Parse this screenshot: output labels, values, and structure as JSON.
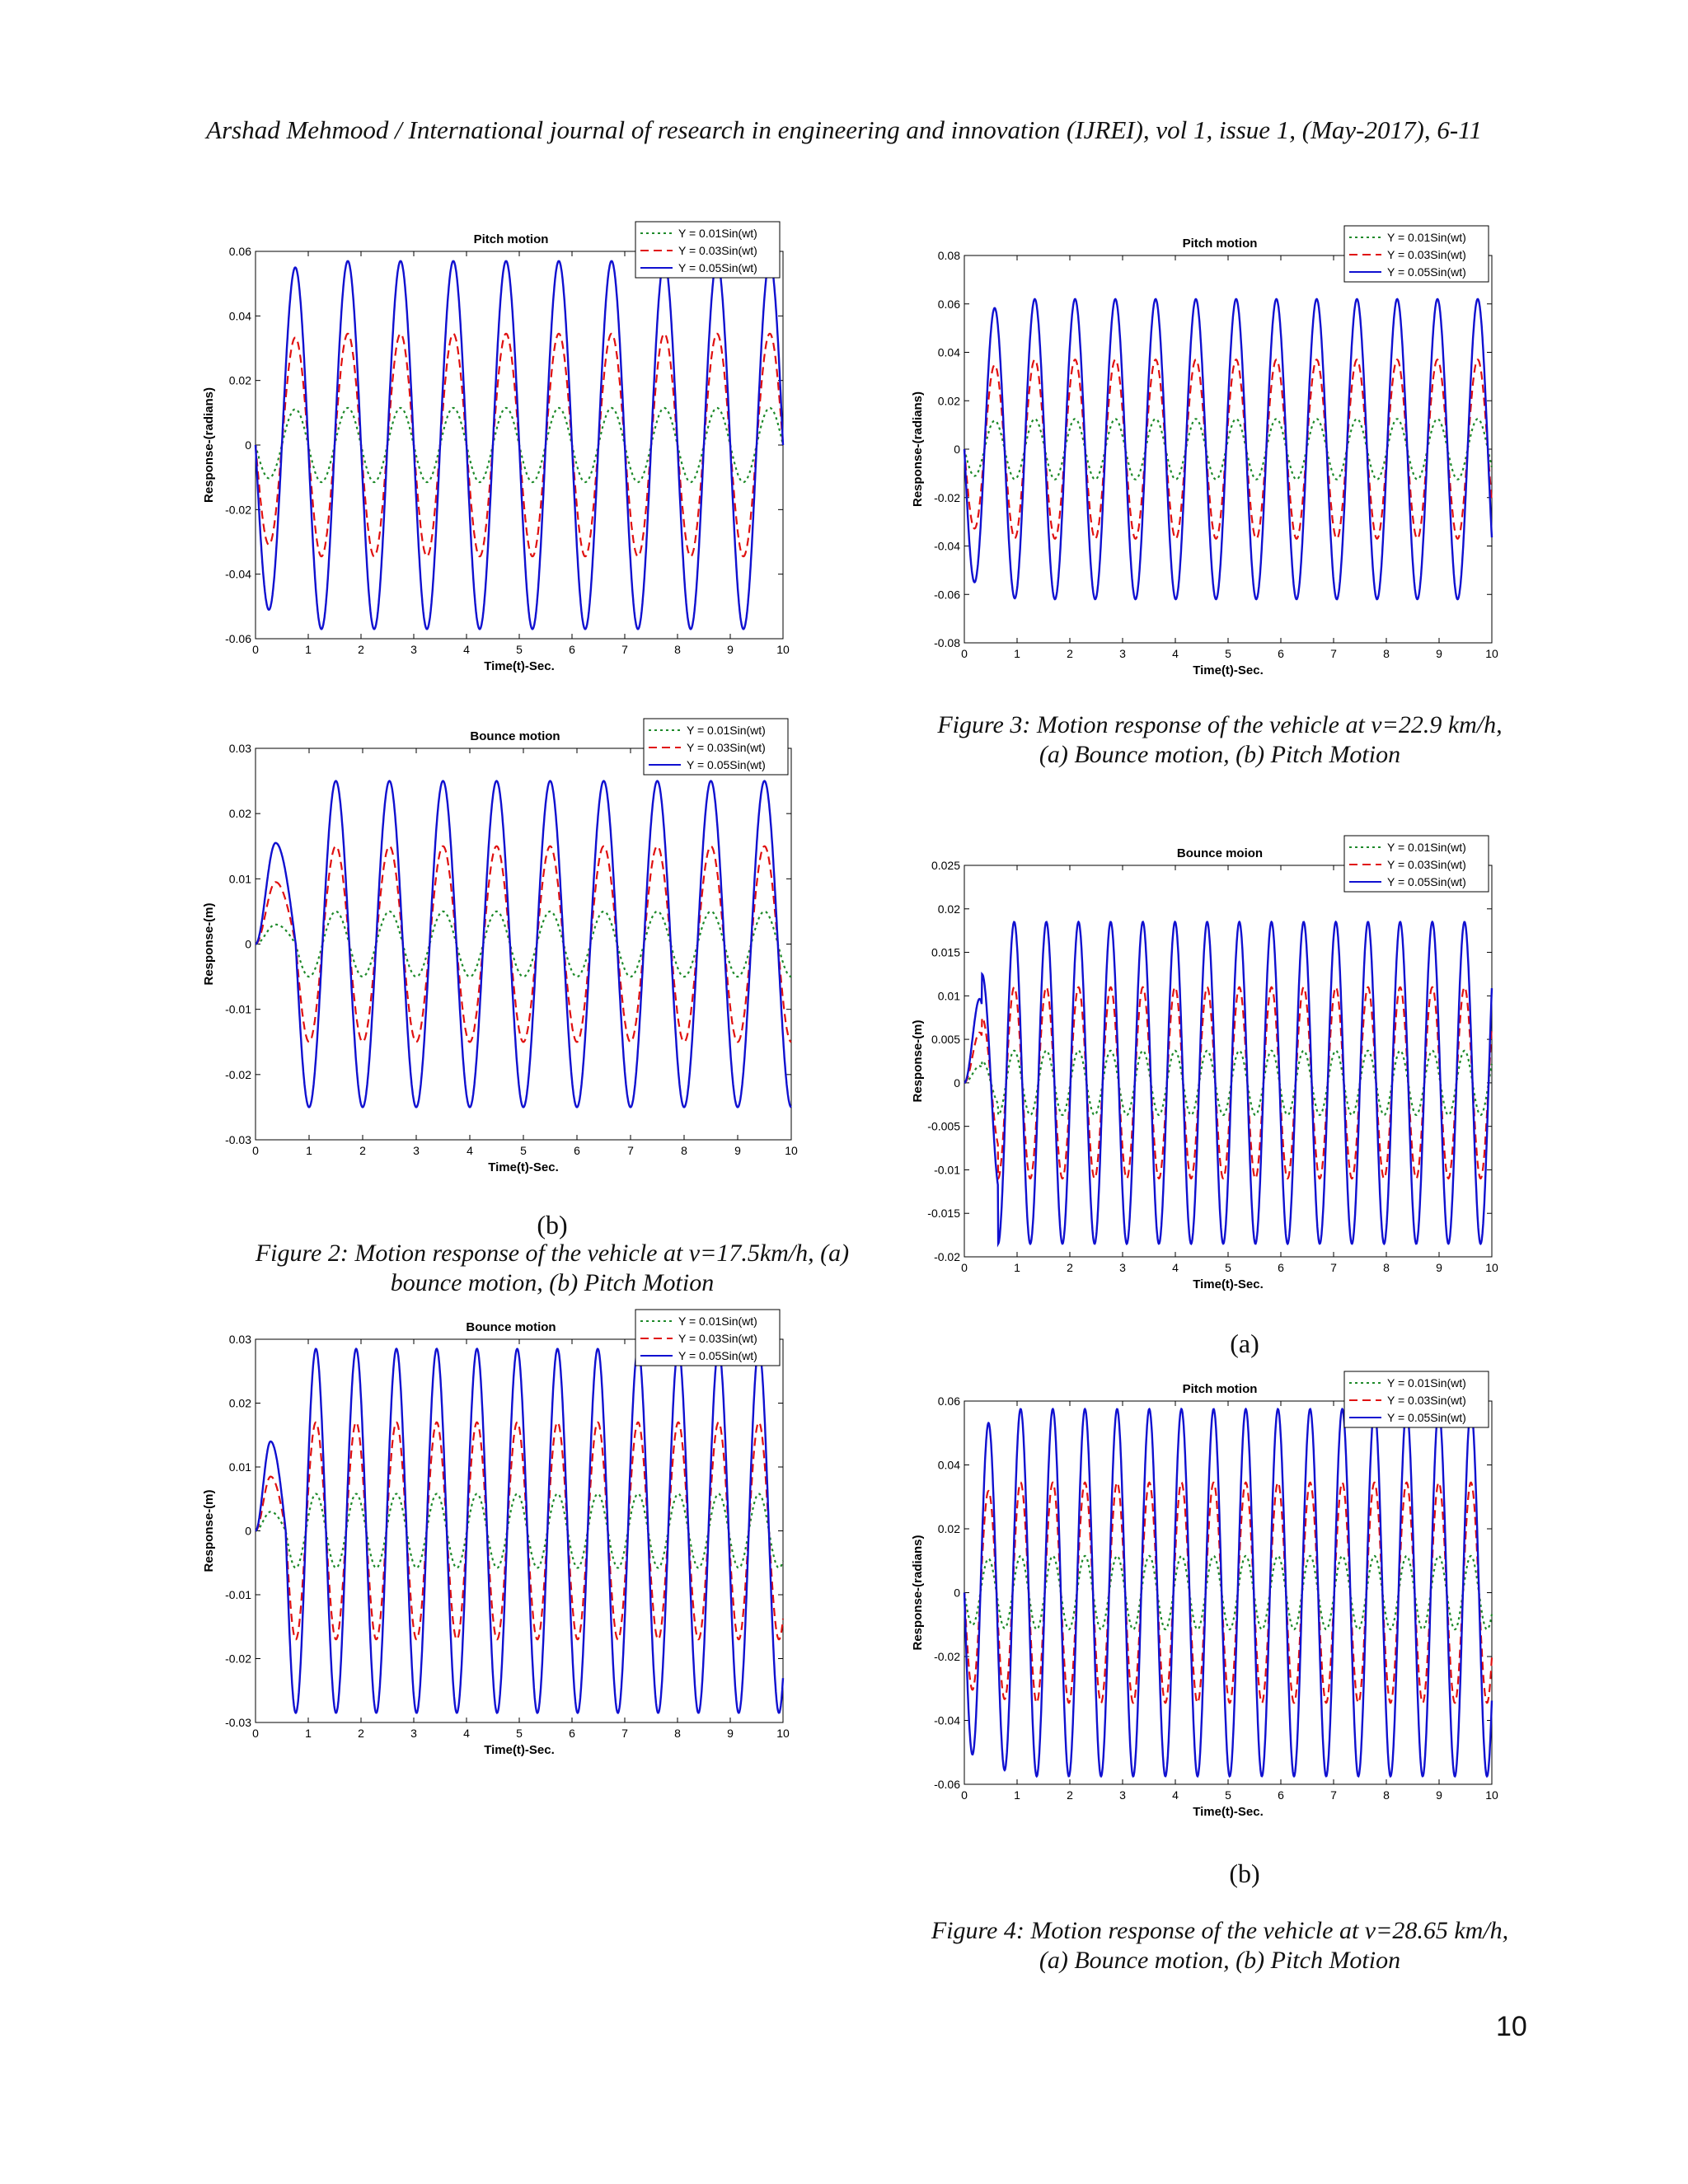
{
  "page": {
    "header": "Arshad Mehmood / International journal of research in engineering and innovation (IJREI), vol 1, issue 1, (May-2017), 6-11",
    "page_number": "10",
    "captions": {
      "fig2_label": "(b)",
      "fig2_line1": "Figure 2: Motion response of the vehicle at v=17.5km/h, (a)",
      "fig2_line2": "bounce motion, (b) Pitch Motion",
      "fig3_line1": "Figure 3: Motion response of the vehicle at v=22.9 km/h,",
      "fig3_line2": "(a) Bounce motion, (b) Pitch Motion",
      "fig4_label_a": "(a)",
      "fig4_label_b": "(b)",
      "fig4_line1": "Figure 4: Motion response of the vehicle at v=28.65 km/h,",
      "fig4_line2": "(a) Bounce motion, (b) Pitch Motion"
    },
    "colors": {
      "y001": "#1e8a2a",
      "y003": "#e01010",
      "y005": "#1010d0"
    }
  },
  "chart_data": [
    {
      "id": "fig2a-pitch",
      "type": "line",
      "title": "Pitch motion",
      "xlabel": "Time(t)-Sec.",
      "ylabel": "Response-(radians)",
      "xlim": [
        0,
        10
      ],
      "ylim": [
        -0.06,
        0.06
      ],
      "xticks": [
        0,
        1,
        2,
        3,
        4,
        5,
        6,
        7,
        8,
        9,
        10
      ],
      "yticks": [
        -0.06,
        -0.04,
        -0.02,
        0,
        0.02,
        0.04,
        0.06
      ],
      "ytick_labels": [
        "-0.06",
        "-0.04",
        "-0.02",
        "0",
        "0.02",
        "0.04",
        "0.06"
      ],
      "legend_position": "top-right",
      "legend": [
        "Y = 0.01Sin(wt)",
        "Y = 0.03Sin(wt)",
        "Y = 0.05Sin(wt)"
      ],
      "model": {
        "shape": "sin",
        "frequency_hz": 1,
        "peak_amplitudes": [
          0.0115,
          0.0345,
          0.057
        ]
      }
    },
    {
      "id": "fig2b-bounce",
      "type": "line",
      "title": "Bounce motion",
      "xlabel": "Time(t)-Sec.",
      "ylabel": "Response-(m)",
      "xlim": [
        0,
        10
      ],
      "ylim": [
        -0.03,
        0.03
      ],
      "xticks": [
        0,
        1,
        2,
        3,
        4,
        5,
        6,
        7,
        8,
        9,
        10
      ],
      "yticks": [
        -0.03,
        -0.02,
        -0.01,
        0,
        0.01,
        0.02,
        0.03
      ],
      "ytick_labels": [
        "-0.03",
        "-0.02",
        "-0.01",
        "0",
        "0.01",
        "0.02",
        "0.03"
      ],
      "legend_position": "top-right",
      "legend": [
        "Y = 0.01Sin(wt)",
        "Y = 0.03Sin(wt)",
        "Y = 0.05Sin(wt)"
      ],
      "model": {
        "shape": "1-cos",
        "frequency_hz": 1,
        "peak_amplitudes": [
          0.005,
          0.015,
          0.025
        ],
        "first_peak_amplitudes": [
          0.003,
          0.0095,
          0.0155
        ]
      }
    },
    {
      "id": "fig3a-bounce",
      "type": "line",
      "title": "Bounce motion",
      "xlabel": "Time(t)-Sec.",
      "ylabel": "Response-(m)",
      "xlim": [
        0,
        10
      ],
      "ylim": [
        -0.03,
        0.03
      ],
      "xticks": [
        0,
        1,
        2,
        3,
        4,
        5,
        6,
        7,
        8,
        9,
        10
      ],
      "yticks": [
        -0.03,
        -0.02,
        -0.01,
        0,
        0.01,
        0.02,
        0.03
      ],
      "ytick_labels": [
        "-0.03",
        "-0.02",
        "-0.01",
        "0",
        "0.01",
        "0.02",
        "0.03"
      ],
      "legend_position": "top-right",
      "legend": [
        "Y = 0.01Sin(wt)",
        "Y = 0.03Sin(wt)",
        "Y = 0.05Sin(wt)"
      ],
      "model": {
        "shape": "1-cos",
        "frequency_hz": 1.31,
        "peak_amplitudes": [
          0.0058,
          0.017,
          0.0285
        ],
        "first_peak_amplitudes": [
          0.003,
          0.0085,
          0.014
        ]
      }
    },
    {
      "id": "fig3b-pitch",
      "type": "line",
      "title": "Pitch motion",
      "xlabel": "Time(t)-Sec.",
      "ylabel": "Response-(radians)",
      "xlim": [
        0,
        10
      ],
      "ylim": [
        -0.08,
        0.08
      ],
      "xticks": [
        0,
        1,
        2,
        3,
        4,
        5,
        6,
        7,
        8,
        9,
        10
      ],
      "yticks": [
        -0.08,
        -0.06,
        -0.04,
        -0.02,
        0,
        0.02,
        0.04,
        0.06,
        0.08
      ],
      "ytick_labels": [
        "-0.08",
        "-0.06",
        "-0.04",
        "-0.02",
        "0",
        "0.02",
        "0.04",
        "0.06",
        "0.08"
      ],
      "legend_position": "top-right",
      "legend": [
        "Y = 0.01Sin(wt)",
        "Y = 0.03Sin(wt)",
        "Y = 0.05Sin(wt)"
      ],
      "model": {
        "shape": "sin",
        "frequency_hz": 1.31,
        "peak_amplitudes": [
          0.0125,
          0.037,
          0.062
        ]
      }
    },
    {
      "id": "fig4a-bounce",
      "type": "line",
      "title": "Bounce moion",
      "xlabel": "Time(t)-Sec.",
      "ylabel": "Response-(m)",
      "xlim": [
        0,
        10
      ],
      "ylim": [
        -0.02,
        0.025
      ],
      "xticks": [
        0,
        1,
        2,
        3,
        4,
        5,
        6,
        7,
        8,
        9,
        10
      ],
      "yticks": [
        -0.02,
        -0.015,
        -0.01,
        -0.005,
        0,
        0.005,
        0.01,
        0.015,
        0.02,
        0.025
      ],
      "ytick_labels": [
        "-0.02",
        "-0.015",
        "-0.01",
        "-0.005",
        "0",
        "0.005",
        "0.01",
        "0.015",
        "0.02",
        "0.025"
      ],
      "legend_position": "top-right",
      "legend": [
        "Y = 0.01Sin(wt)",
        "Y = 0.03Sin(wt)",
        "Y = 0.05Sin(wt)"
      ],
      "model": {
        "shape": "sin-bounce",
        "frequency_hz": 1.64,
        "peak_amplitudes": [
          0.0037,
          0.011,
          0.0185
        ],
        "first_peak_amplitudes": [
          0.0025,
          0.0075,
          0.0125
        ]
      }
    },
    {
      "id": "fig4b-pitch",
      "type": "line",
      "title": "Pitch motion",
      "xlabel": "Time(t)-Sec.",
      "ylabel": "Response-(radians)",
      "xlim": [
        0,
        10
      ],
      "ylim": [
        -0.06,
        0.06
      ],
      "xticks": [
        0,
        1,
        2,
        3,
        4,
        5,
        6,
        7,
        8,
        9,
        10
      ],
      "yticks": [
        -0.06,
        -0.04,
        -0.02,
        0,
        0.02,
        0.04,
        0.06
      ],
      "ytick_labels": [
        "-0.06",
        "-0.04",
        "-0.02",
        "0",
        "0.02",
        "0.04",
        "0.06"
      ],
      "legend_position": "top-right",
      "legend": [
        "Y = 0.01Sin(wt)",
        "Y = 0.03Sin(wt)",
        "Y = 0.05Sin(wt)"
      ],
      "model": {
        "shape": "sin",
        "frequency_hz": 1.64,
        "peak_amplitudes": [
          0.0115,
          0.0345,
          0.0575
        ]
      }
    }
  ]
}
